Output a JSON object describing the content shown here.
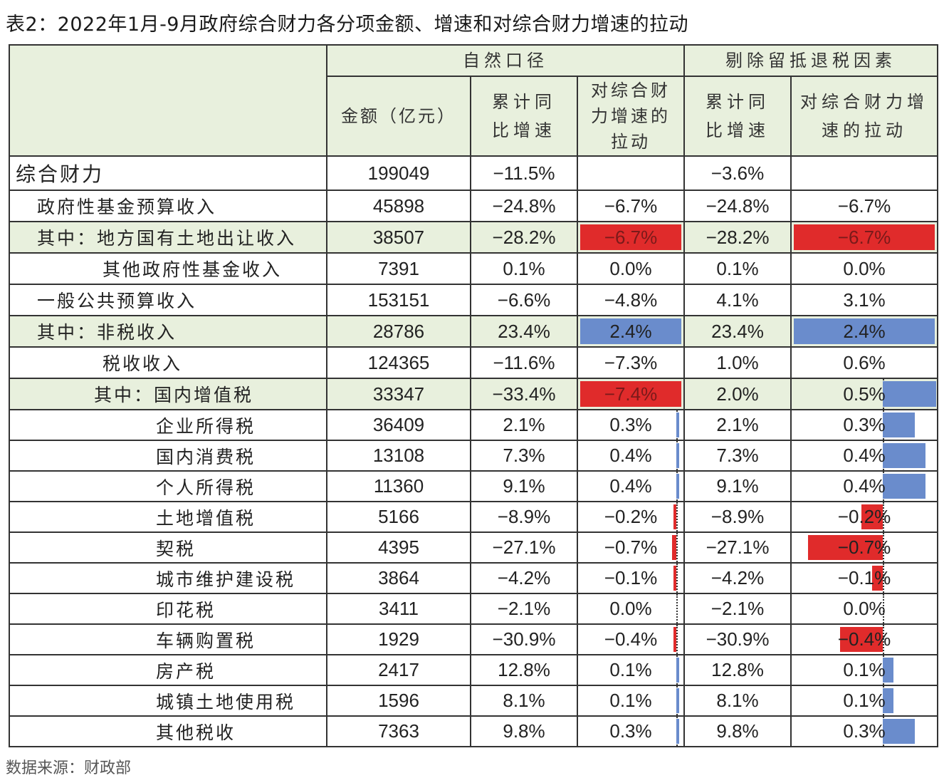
{
  "title": "表2：2022年1月-9月政府综合财力各分项金额、增速和对综合财力增速的拉动",
  "source": "数据来源：财政部",
  "colors": {
    "header_bg": "#e8f0dd",
    "pos": "#6a8ccc",
    "neg": "#e02b2b"
  },
  "header": {
    "group1": "自然口径",
    "group2": "剔除留抵退税因素",
    "amount": "金额（亿元）",
    "growth1": "累计同比增速",
    "pull1": "对综合财力增速的拉动",
    "growth2": "累计同比增速",
    "pull2": "对综合财力增速的拉动"
  },
  "rows": [
    {
      "name": "综合财力",
      "amount": "199049",
      "growth1": "−11.5%",
      "pull1": "",
      "growth2": "−3.6%",
      "pull2": ""
    },
    {
      "name": "政府性基金预算收入",
      "amount": "45898",
      "growth1": "−24.8%",
      "pull1": "−6.7%",
      "growth2": "−24.8%",
      "pull2": "−6.7%"
    },
    {
      "name": "其中：地方国有土地出让收入",
      "amount": "38507",
      "growth1": "−28.2%",
      "pull1": "−6.7%",
      "growth2": "−28.2%",
      "pull2": "−6.7%"
    },
    {
      "name": "其他政府性基金收入",
      "amount": "7391",
      "growth1": "0.1%",
      "pull1": "0.0%",
      "growth2": "0.1%",
      "pull2": "0.0%"
    },
    {
      "name": "一般公共预算收入",
      "amount": "153151",
      "growth1": "−6.6%",
      "pull1": "−4.8%",
      "growth2": "4.1%",
      "pull2": "3.1%"
    },
    {
      "name": "其中：非税收入",
      "amount": "28786",
      "growth1": "23.4%",
      "pull1": "2.4%",
      "growth2": "23.4%",
      "pull2": "2.4%"
    },
    {
      "name": "税收收入",
      "amount": "124365",
      "growth1": "−11.6%",
      "pull1": "−7.3%",
      "growth2": "1.0%",
      "pull2": "0.6%"
    },
    {
      "name": "其中：国内增值税",
      "amount": "33347",
      "growth1": "−33.4%",
      "pull1": "−7.4%",
      "growth2": "2.0%",
      "pull2": "0.5%"
    },
    {
      "name": "企业所得税",
      "amount": "36409",
      "growth1": "2.1%",
      "pull1": "0.3%",
      "growth2": "2.1%",
      "pull2": "0.3%"
    },
    {
      "name": "国内消费税",
      "amount": "13108",
      "growth1": "7.3%",
      "pull1": "0.4%",
      "growth2": "7.3%",
      "pull2": "0.4%"
    },
    {
      "name": "个人所得税",
      "amount": "11360",
      "growth1": "9.1%",
      "pull1": "0.4%",
      "growth2": "9.1%",
      "pull2": "0.4%"
    },
    {
      "name": "土地增值税",
      "amount": "5166",
      "growth1": "−8.9%",
      "pull1": "−0.2%",
      "growth2": "−8.9%",
      "pull2": "−0.2%"
    },
    {
      "name": "契税",
      "amount": "4395",
      "growth1": "−27.1%",
      "pull1": "−0.7%",
      "growth2": "−27.1%",
      "pull2": "−0.7%"
    },
    {
      "name": "城市维护建设税",
      "amount": "3864",
      "growth1": "−4.2%",
      "pull1": "−0.1%",
      "growth2": "−4.2%",
      "pull2": "−0.1%"
    },
    {
      "name": "印花税",
      "amount": "3411",
      "growth1": "−2.1%",
      "pull1": "0.0%",
      "growth2": "−2.1%",
      "pull2": "0.0%"
    },
    {
      "name": "车辆购置税",
      "amount": "1929",
      "growth1": "−30.9%",
      "pull1": "−0.4%",
      "growth2": "−30.9%",
      "pull2": "−0.4%"
    },
    {
      "name": "房产税",
      "amount": "2417",
      "growth1": "12.8%",
      "pull1": "0.1%",
      "growth2": "12.8%",
      "pull2": "0.1%"
    },
    {
      "name": "城镇土地使用税",
      "amount": "1596",
      "growth1": "8.1%",
      "pull1": "0.1%",
      "growth2": "8.1%",
      "pull2": "0.1%"
    },
    {
      "name": "其他税收",
      "amount": "7363",
      "growth1": "9.8%",
      "pull1": "0.3%",
      "growth2": "9.8%",
      "pull2": "0.3%"
    }
  ],
  "pull_values": {
    "pull1": [
      null,
      -6.7,
      -6.7,
      0.0,
      -4.8,
      2.4,
      -7.3,
      -7.4,
      0.3,
      0.4,
      0.4,
      -0.2,
      -0.7,
      -0.1,
      0.0,
      -0.4,
      0.1,
      0.1,
      0.3
    ],
    "pull2": [
      null,
      -6.7,
      -6.7,
      0.0,
      3.1,
      2.4,
      0.6,
      0.5,
      0.3,
      0.4,
      0.4,
      -0.2,
      -0.7,
      -0.1,
      0.0,
      -0.4,
      0.1,
      0.1,
      0.3
    ]
  }
}
